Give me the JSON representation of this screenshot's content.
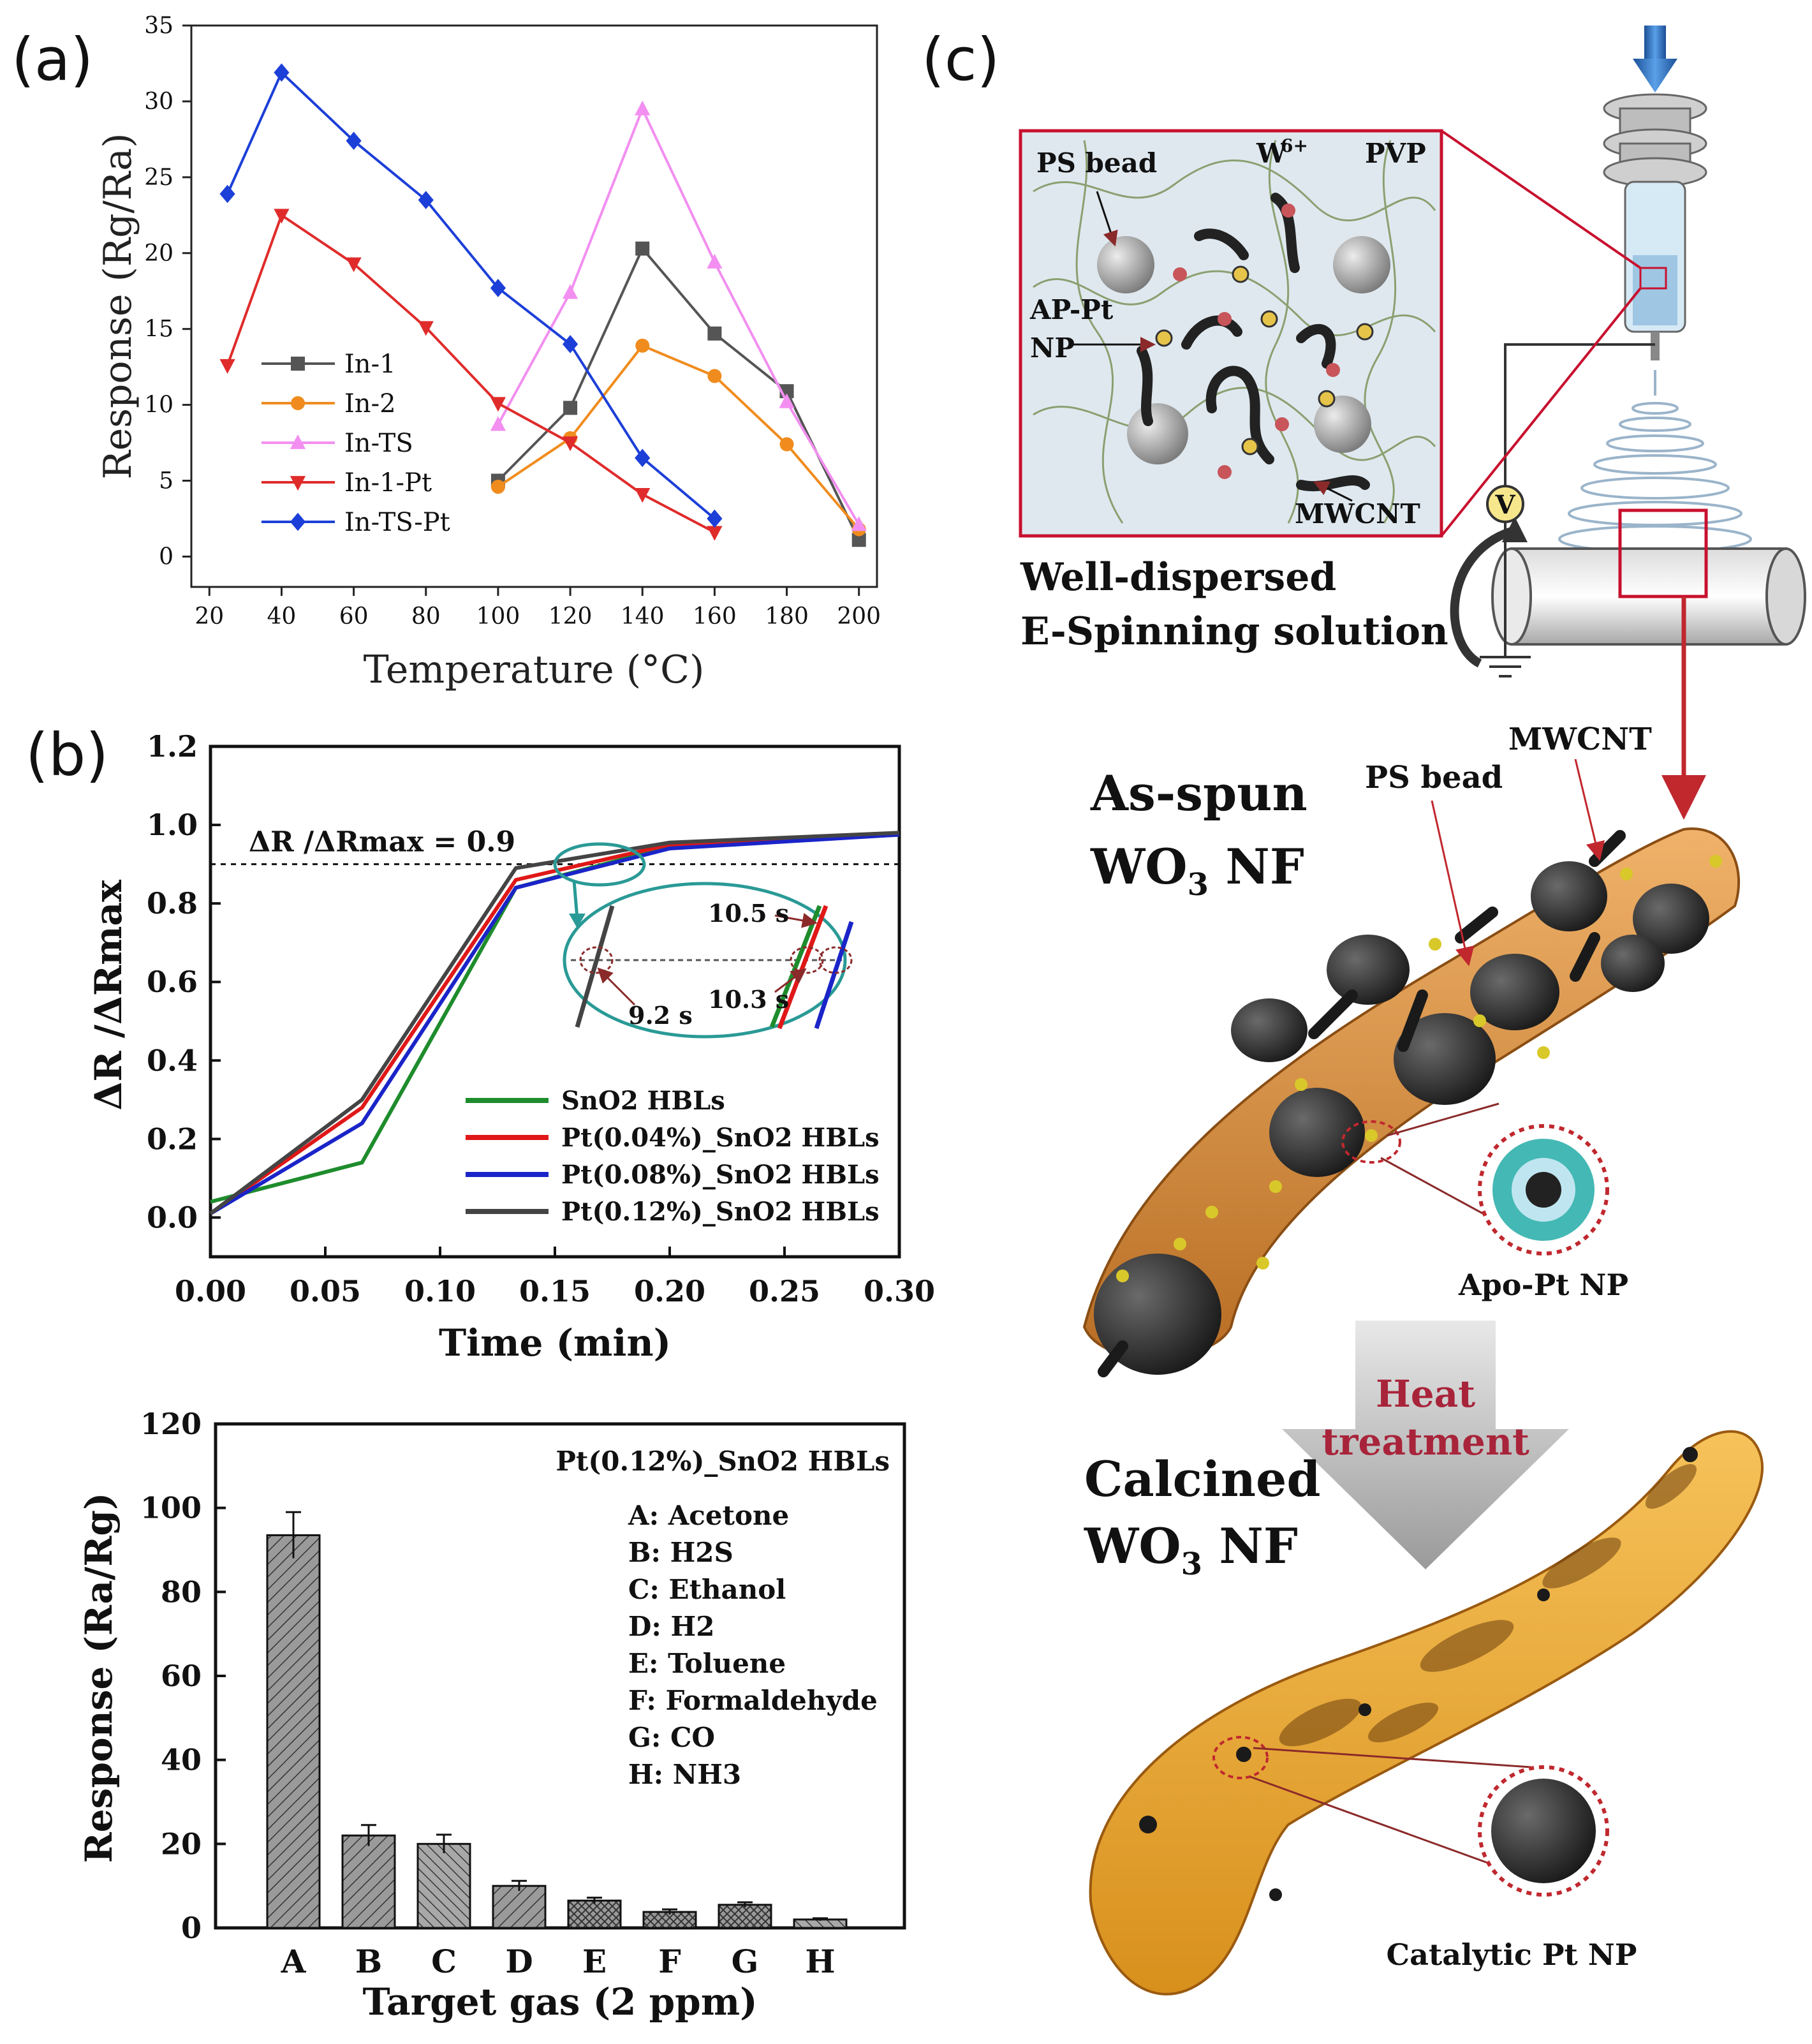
{
  "panel_labels": [
    "(a)",
    "(b)",
    "(c)"
  ],
  "chart_data": [
    {
      "id": "a",
      "type": "line",
      "xlabel": "Temperature (°C)",
      "ylabel": "Response (Rg/Ra)",
      "xlim": [
        15,
        205
      ],
      "ylim": [
        -2,
        35
      ],
      "xticks": [
        20,
        40,
        60,
        80,
        100,
        120,
        140,
        160,
        180,
        200
      ],
      "yticks": [
        0,
        5,
        10,
        15,
        20,
        25,
        30,
        35
      ],
      "legend_position": "bottom-left",
      "series": [
        {
          "name": "In-1",
          "color": "#555555",
          "marker": "square",
          "x": [
            100,
            120,
            140,
            160,
            180,
            200
          ],
          "y": [
            5,
            9.8,
            20.3,
            14.7,
            10.9,
            1.1
          ]
        },
        {
          "name": "In-2",
          "color": "#f08c1e",
          "marker": "circle",
          "x": [
            100,
            120,
            140,
            160,
            180,
            200
          ],
          "y": [
            4.6,
            7.8,
            13.9,
            11.9,
            7.4,
            1.8
          ]
        },
        {
          "name": "In-TS",
          "color": "#f28ff0",
          "marker": "triangle-up",
          "x": [
            100,
            120,
            140,
            160,
            180,
            200
          ],
          "y": [
            8.7,
            17.4,
            29.5,
            19.4,
            10.2,
            2.1
          ]
        },
        {
          "name": "In-1-Pt",
          "color": "#e02b2b",
          "marker": "triangle-down",
          "x": [
            25,
            40,
            60,
            80,
            100,
            120,
            140,
            160
          ],
          "y": [
            12.6,
            22.5,
            19.3,
            15.1,
            10.1,
            7.5,
            4.1,
            1.6
          ]
        },
        {
          "name": "In-TS-Pt",
          "color": "#1c3fd8",
          "marker": "diamond",
          "x": [
            25,
            40,
            60,
            80,
            100,
            120,
            140,
            160
          ],
          "y": [
            23.9,
            31.9,
            27.4,
            23.5,
            17.7,
            14,
            6.5,
            2.5
          ]
        }
      ]
    },
    {
      "id": "b1",
      "type": "line",
      "xlabel": "Time (min)",
      "ylabel": "ΔR /ΔRmax",
      "xlim": [
        0,
        0.3
      ],
      "ylim": [
        -0.1,
        1.2
      ],
      "xticks": [
        "0.00",
        "0.05",
        "0.10",
        "0.15",
        "0.20",
        "0.25",
        "0.30"
      ],
      "yticks": [
        "0.0",
        "0.2",
        "0.4",
        "0.6",
        "0.8",
        "1.0",
        "1.2"
      ],
      "threshold": {
        "y": 0.9,
        "label": "ΔR /ΔRmax = 0.9"
      },
      "inset_annotations": [
        "10.5 s",
        "10.3 s",
        "9.2 s"
      ],
      "legend_position": "bottom-right",
      "series": [
        {
          "name": "SnO2 HBLs",
          "color": "#1e8c2c",
          "x": [
            0,
            0.066,
            0.133,
            0.2,
            0.3
          ],
          "y": [
            0.04,
            0.14,
            0.84,
            0.945,
            0.975
          ]
        },
        {
          "name": "Pt(0.04%)_SnO2 HBLs",
          "color": "#e01818",
          "x": [
            0,
            0.066,
            0.133,
            0.2,
            0.3
          ],
          "y": [
            0.01,
            0.28,
            0.86,
            0.95,
            0.975
          ]
        },
        {
          "name": "Pt(0.08%)_SnO2 HBLs",
          "color": "#1a24c8",
          "x": [
            0,
            0.066,
            0.133,
            0.2,
            0.3
          ],
          "y": [
            0.01,
            0.24,
            0.84,
            0.94,
            0.975
          ]
        },
        {
          "name": "Pt(0.12%)_SnO2 HBLs",
          "color": "#444444",
          "x": [
            0,
            0.066,
            0.133,
            0.2,
            0.3
          ],
          "y": [
            0.01,
            0.3,
            0.89,
            0.955,
            0.98
          ]
        }
      ]
    },
    {
      "id": "b2",
      "type": "bar",
      "title": "Pt(0.12%)_SnO2 HBLs",
      "xlabel": "Target gas (2 ppm)",
      "ylabel": "Response (Ra/Rg)",
      "ylim": [
        0,
        120
      ],
      "yticks": [
        0,
        20,
        40,
        60,
        80,
        100,
        120
      ],
      "categories": [
        "A",
        "B",
        "C",
        "D",
        "E",
        "F",
        "G",
        "H"
      ],
      "values": [
        93.5,
        22,
        20,
        10,
        6.5,
        3.8,
        5.5,
        2
      ],
      "errors": [
        5.5,
        2.5,
        2.2,
        1.2,
        0.7,
        0.6,
        0.6,
        0.3
      ],
      "legend": [
        "A: Acetone",
        "B: H2S",
        "C: Ethanol",
        "D: H2",
        "E: Toluene",
        "F: Formaldehyde",
        "G: CO",
        "H: NH3"
      ]
    }
  ],
  "diagram": {
    "inset_labels": {
      "ps_bead": "PS bead",
      "w6": "W",
      "w6_sup": "6+",
      "pvp": "PVP",
      "ap_pt": "AP-Pt",
      "np": "NP",
      "mwcnt": "MWCNT"
    },
    "voltage": "V",
    "solution_caption": [
      "Well-dispersed",
      "E-Spinning solution"
    ],
    "mwcnt_label": "MWCNT",
    "ps_bead_label": "PS bead",
    "as_spun": [
      "As-spun",
      "WO",
      "3",
      " NF"
    ],
    "apo_pt": "Apo-Pt NP",
    "heat": [
      "Heat",
      "treatment"
    ],
    "calcined": [
      "Calcined",
      "WO",
      "3",
      " NF"
    ],
    "catalytic": "Catalytic Pt NP"
  }
}
